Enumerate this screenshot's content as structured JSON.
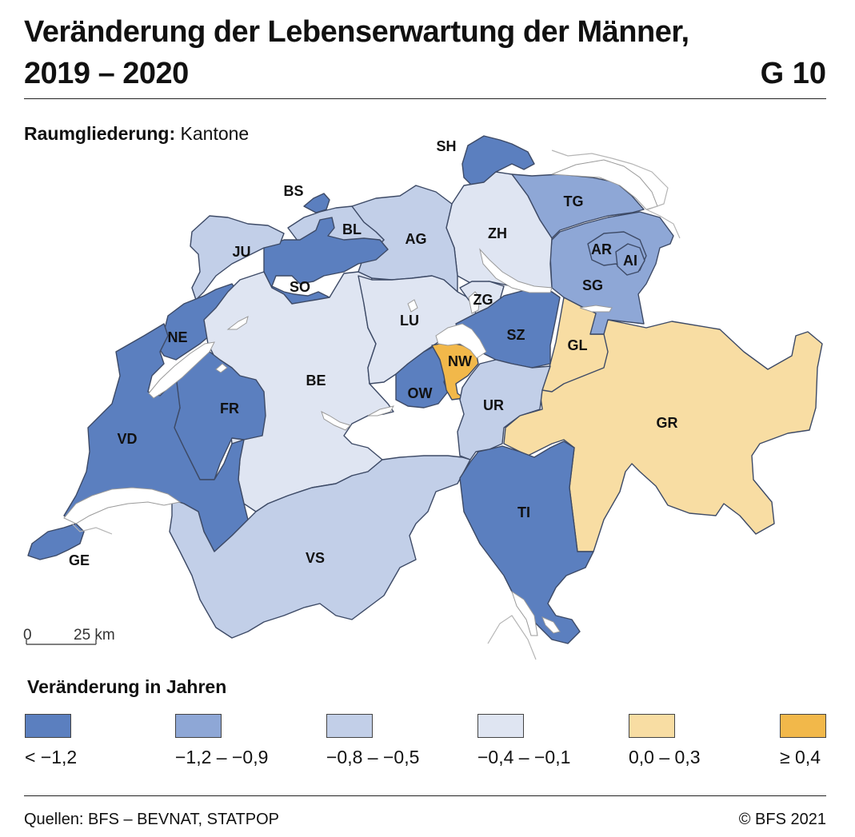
{
  "header": {
    "title_line1": "Veränderung der Lebenserwartung der Männer,",
    "title_line2": "2019 – 2020",
    "graphic_number": "G 10"
  },
  "subtitle": {
    "label": "Raumgliederung:",
    "value": "Kantone"
  },
  "scale_bar": {
    "start": "0",
    "end": "25 km"
  },
  "colors": {
    "c1": "#5b7fbf",
    "c2": "#8ea7d6",
    "c3": "#c2cfe8",
    "c4": "#dfe5f2",
    "c5": "#f8dda3",
    "c6": "#f2b84a",
    "water": "#ffffff",
    "border": "#3d4a66"
  },
  "legend": {
    "title": "Veränderung in Jahren",
    "classes": [
      {
        "label": "< −1,2",
        "color": "#5b7fbf"
      },
      {
        "label": "−1,2 – −0,9",
        "color": "#8ea7d6"
      },
      {
        "label": "−0,8 – −0,5",
        "color": "#c2cfe8"
      },
      {
        "label": "−0,4 – −0,1",
        "color": "#dfe5f2"
      },
      {
        "label": "0,0 – 0,3",
        "color": "#f8dda3"
      },
      {
        "label": "≥ 0,4",
        "color": "#f2b84a"
      }
    ]
  },
  "cantons": [
    {
      "code": "SH",
      "class": 0
    },
    {
      "code": "BS",
      "class": 0
    },
    {
      "code": "BL",
      "class": 2
    },
    {
      "code": "JU",
      "class": 2
    },
    {
      "code": "SO",
      "class": 0
    },
    {
      "code": "AG",
      "class": 2
    },
    {
      "code": "ZH",
      "class": 3
    },
    {
      "code": "TG",
      "class": 1
    },
    {
      "code": "AR",
      "class": 1
    },
    {
      "code": "AI",
      "class": 1
    },
    {
      "code": "SG",
      "class": 1
    },
    {
      "code": "NE",
      "class": 0
    },
    {
      "code": "LU",
      "class": 3
    },
    {
      "code": "ZG",
      "class": 3
    },
    {
      "code": "SZ",
      "class": 0
    },
    {
      "code": "GL",
      "class": 4
    },
    {
      "code": "NW",
      "class": 5
    },
    {
      "code": "BE",
      "class": 3
    },
    {
      "code": "FR",
      "class": 0
    },
    {
      "code": "OW",
      "class": 0
    },
    {
      "code": "UR",
      "class": 2
    },
    {
      "code": "GR",
      "class": 4
    },
    {
      "code": "VD",
      "class": 0
    },
    {
      "code": "TI",
      "class": 0
    },
    {
      "code": "VS",
      "class": 2
    },
    {
      "code": "GE",
      "class": 0
    }
  ],
  "footer": {
    "source": "Quellen: BFS – BEVNAT, STATPOP",
    "copyright": "© BFS 2021"
  }
}
